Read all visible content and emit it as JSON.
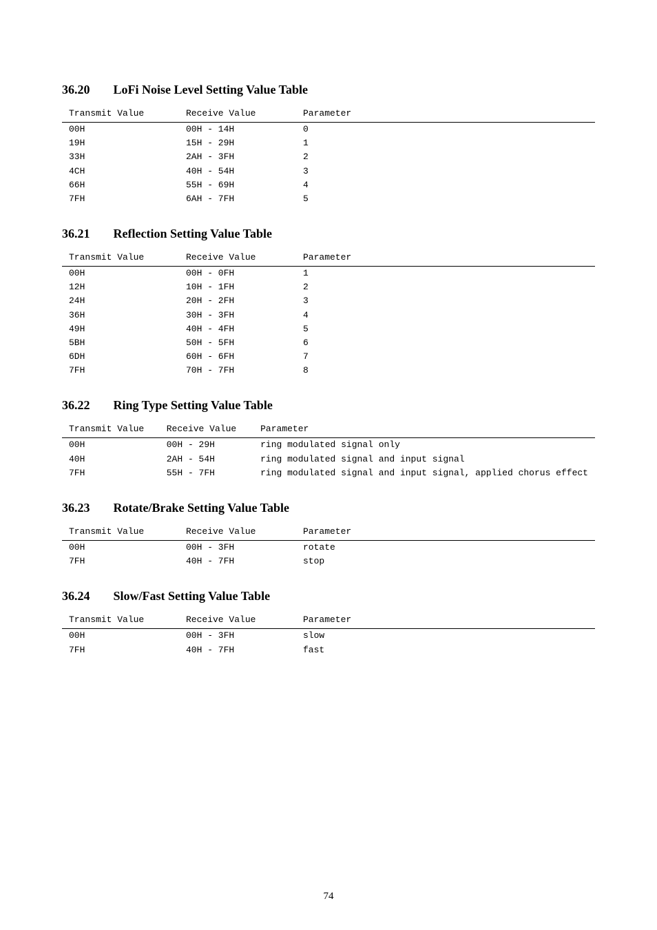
{
  "page_number": "74",
  "font": {
    "heading_family": "Times New Roman",
    "heading_size_pt": 13,
    "mono_family": "Courier New",
    "mono_size_pt": 10,
    "text_color": "#000000",
    "background": "#ffffff",
    "rule_color": "#000000"
  },
  "columns": {
    "tx": "Transmit Value",
    "rx": "Receive Value",
    "param": "Parameter"
  },
  "tables": {
    "lofi_noise": {
      "number": "36.20",
      "title": "LoFi Noise Level Setting Value Table",
      "rows": [
        {
          "tx": "00H",
          "rx": "00H - 14H",
          "param": "0"
        },
        {
          "tx": "19H",
          "rx": "15H - 29H",
          "param": "1"
        },
        {
          "tx": "33H",
          "rx": "2AH - 3FH",
          "param": "2"
        },
        {
          "tx": "4CH",
          "rx": "40H - 54H",
          "param": "3"
        },
        {
          "tx": "66H",
          "rx": "55H - 69H",
          "param": "4"
        },
        {
          "tx": "7FH",
          "rx": "6AH - 7FH",
          "param": "5"
        }
      ]
    },
    "reflection": {
      "number": "36.21",
      "title": "Reflection Setting Value Table",
      "rows": [
        {
          "tx": "00H",
          "rx": "00H - 0FH",
          "param": "1"
        },
        {
          "tx": "12H",
          "rx": "10H - 1FH",
          "param": "2"
        },
        {
          "tx": "24H",
          "rx": "20H - 2FH",
          "param": "3"
        },
        {
          "tx": "36H",
          "rx": "30H - 3FH",
          "param": "4"
        },
        {
          "tx": "49H",
          "rx": "40H - 4FH",
          "param": "5"
        },
        {
          "tx": "5BH",
          "rx": "50H - 5FH",
          "param": "6"
        },
        {
          "tx": "6DH",
          "rx": "60H - 6FH",
          "param": "7"
        },
        {
          "tx": "7FH",
          "rx": "70H - 7FH",
          "param": "8"
        }
      ]
    },
    "ring_type": {
      "number": "36.22",
      "title": "Ring Type Setting Value Table",
      "rows": [
        {
          "tx": "00H",
          "rx": "00H - 29H",
          "param": "ring modulated signal only"
        },
        {
          "tx": "40H",
          "rx": "2AH - 54H",
          "param": "ring modulated signal and input signal"
        },
        {
          "tx": "7FH",
          "rx": "55H - 7FH",
          "param": "ring modulated signal and input signal, applied chorus effect"
        }
      ]
    },
    "rotate_brake": {
      "number": "36.23",
      "title": "Rotate/Brake Setting Value Table",
      "rows": [
        {
          "tx": "00H",
          "rx": "00H - 3FH",
          "param": "rotate"
        },
        {
          "tx": "7FH",
          "rx": "40H - 7FH",
          "param": "stop"
        }
      ]
    },
    "slow_fast": {
      "number": "36.24",
      "title": "Slow/Fast Setting Value Table",
      "rows": [
        {
          "tx": "00H",
          "rx": "00H - 3FH",
          "param": "slow"
        },
        {
          "tx": "7FH",
          "rx": "40H - 7FH",
          "param": "fast"
        }
      ]
    }
  }
}
